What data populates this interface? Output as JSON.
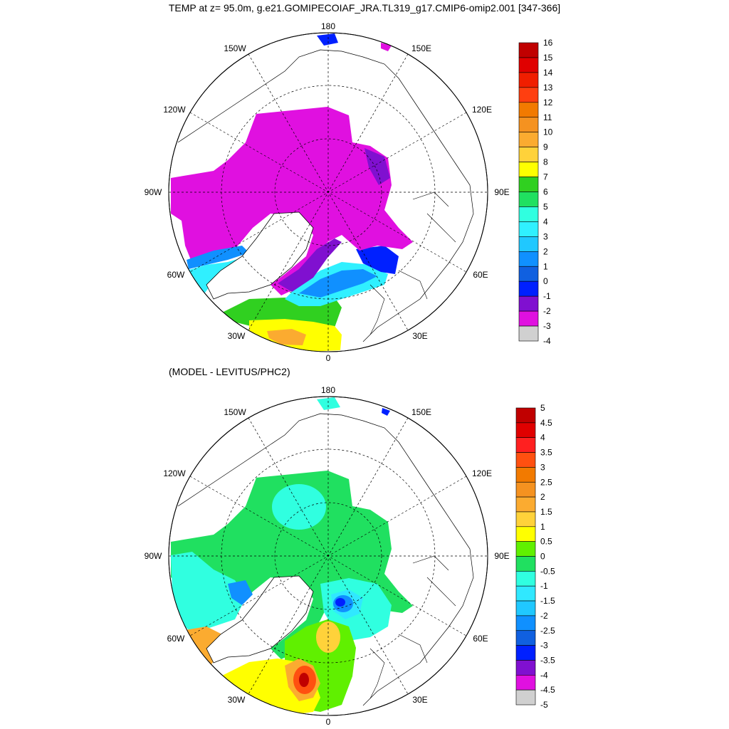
{
  "title": "TEMP at z=  95.0m, g.e21.GOMIPECOIAF_JRA.TL319_g17.CMIP6-omip2.001 [347-366]",
  "diff_title": "(MODEL - LEVITUS/PHC2)",
  "lon_labels": {
    "top": "180",
    "bottom": "0",
    "upper_left": "150W",
    "upper_right": "150E",
    "mid_upper_left": "120W",
    "mid_upper_right": "120E",
    "left": "90W",
    "right": "90E",
    "mid_lower_left": "60W",
    "mid_lower_right": "60E",
    "lower_left": "30W",
    "lower_right": "30E"
  },
  "colorbar_top": {
    "labels": [
      "16",
      "15",
      "14",
      "13",
      "12",
      "11",
      "10",
      "9",
      "8",
      "7",
      "6",
      "5",
      "4",
      "3",
      "2",
      "1",
      "0",
      "-1",
      "-2",
      "-3",
      "-4"
    ],
    "colors": [
      "#c00000",
      "#e00000",
      "#f01e00",
      "#ff3f10",
      "#f27a00",
      "#f59220",
      "#fbab30",
      "#ffd23a",
      "#ffff00",
      "#30d020",
      "#20e060",
      "#30ffe0",
      "#30f0ff",
      "#20c8ff",
      "#1090ff",
      "#1060e0",
      "#0020ff",
      "#8010d0",
      "#e010e0",
      "#d0d0d0",
      "#707070"
    ]
  },
  "colorbar_bottom": {
    "labels": [
      "5",
      "4.5",
      "4",
      "3.5",
      "3",
      "2.5",
      "2",
      "1.5",
      "1",
      "0.5",
      "0",
      "-0.5",
      "-1",
      "-1.5",
      "-2",
      "-2.5",
      "-3",
      "-3.5",
      "-4",
      "-4.5",
      "-5"
    ],
    "colors": [
      "#c00000",
      "#e00000",
      "#ff2020",
      "#ff5010",
      "#f27a00",
      "#f59220",
      "#fbab30",
      "#ffd23a",
      "#ffff00",
      "#60f000",
      "#20e060",
      "#30ffe0",
      "#30e8ff",
      "#20c8ff",
      "#1090ff",
      "#1060e0",
      "#0020ff",
      "#8010d0",
      "#e010e0",
      "#d0d0d0",
      "#707070"
    ]
  }
}
